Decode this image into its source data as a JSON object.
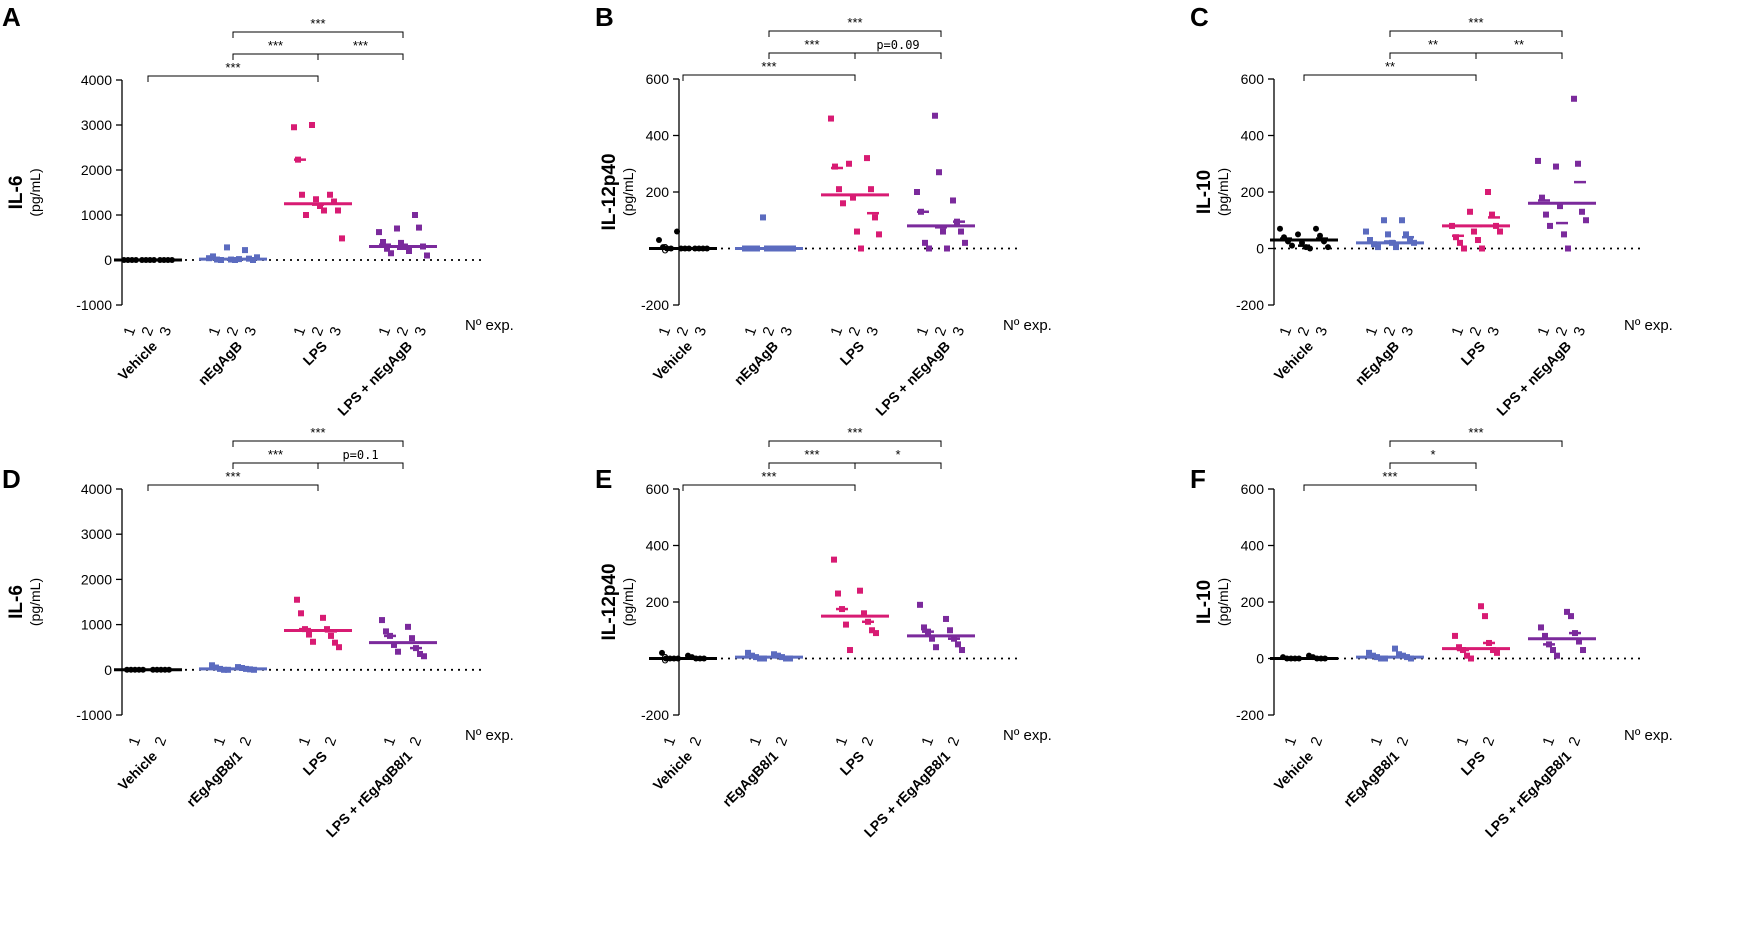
{
  "colors": {
    "Vehicle": "#000000",
    "agb": "#5b6bbf",
    "LPS": "#d81b73",
    "combo": "#7b2a9c"
  },
  "chart_data": [
    {
      "type": "scatter",
      "panel": "A",
      "ytitle": "IL-6",
      "yunit": "(pg/mL)",
      "ylim": [
        -1000,
        4000
      ],
      "yticks": [
        -1000,
        0,
        1000,
        2000,
        3000,
        4000
      ],
      "nexp_label": "Nº  exp.",
      "categories": [
        "Vehicle",
        "nEgAgB",
        "LPS",
        "LPS + nEgAgB"
      ],
      "exp_numbers": [
        "1",
        "2",
        "3"
      ],
      "series": [
        {
          "name": "Vehicle",
          "color_key": "Vehicle",
          "median": 0,
          "exp_medians": [
            0,
            0,
            0
          ],
          "values": [
            [
              0,
              0,
              0,
              0
            ],
            [
              0,
              0,
              0,
              0
            ],
            [
              0,
              0,
              0,
              0
            ]
          ]
        },
        {
          "name": "nEgAgB",
          "color_key": "agb",
          "median": 20,
          "exp_medians": [
            30,
            10,
            20
          ],
          "values": [
            [
              40,
              80,
              10,
              0
            ],
            [
              280,
              10,
              0,
              20
            ],
            [
              220,
              30,
              0,
              60
            ]
          ]
        },
        {
          "name": "LPS",
          "color_key": "LPS",
          "median": 1250,
          "exp_medians": [
            2230,
            1230,
            1250
          ],
          "values": [
            [
              2950,
              2230,
              1450,
              1000
            ],
            [
              3000,
              1350,
              1200,
              1100
            ],
            [
              1450,
              1300,
              1100,
              480
            ]
          ]
        },
        {
          "name": "LPS + nEgAgB",
          "color_key": "combo",
          "median": 300,
          "exp_medians": [
            340,
            250,
            300
          ],
          "values": [
            [
              620,
              400,
              250,
              150
            ],
            [
              700,
              380,
              300,
              200
            ],
            [
              1000,
              720,
              300,
              100
            ]
          ]
        }
      ],
      "comparisons": [
        {
          "from": 0,
          "to": 2,
          "label": "***"
        },
        {
          "from": 1,
          "to": 2,
          "label": "***"
        },
        {
          "from": 2,
          "to": 3,
          "label": "***"
        },
        {
          "from": 1,
          "to": 3,
          "label": "***"
        }
      ]
    },
    {
      "type": "scatter",
      "panel": "B",
      "ytitle": "IL-12p40",
      "yunit": "(pg/mL)",
      "ylim": [
        -200,
        600
      ],
      "yticks": [
        -200,
        0,
        200,
        400,
        600
      ],
      "nexp_label": "Nº  exp.",
      "categories": [
        "Vehicle",
        "nEgAgB",
        "LPS",
        "LPS + nEgAgB"
      ],
      "exp_numbers": [
        "1",
        "2",
        "3"
      ],
      "series": [
        {
          "name": "Vehicle",
          "color_key": "Vehicle",
          "median": 0,
          "exp_medians": [
            0,
            0,
            0
          ],
          "values": [
            [
              30,
              5,
              0,
              0
            ],
            [
              60,
              0,
              0,
              0
            ],
            [
              0,
              0,
              0,
              0
            ]
          ]
        },
        {
          "name": "nEgAgB",
          "color_key": "agb",
          "median": 0,
          "exp_medians": [
            0,
            0,
            0
          ],
          "values": [
            [
              0,
              0,
              0,
              0
            ],
            [
              110,
              0,
              0,
              0
            ],
            [
              0,
              0,
              0,
              0
            ]
          ]
        },
        {
          "name": "LPS",
          "color_key": "LPS",
          "median": 190,
          "exp_medians": [
            285,
            190,
            125
          ],
          "values": [
            [
              460,
              290,
              210,
              160
            ],
            [
              300,
              180,
              60,
              0
            ],
            [
              320,
              210,
              110,
              50
            ]
          ]
        },
        {
          "name": "LPS + nEgAgB",
          "color_key": "combo",
          "median": 80,
          "exp_medians": [
            130,
            75,
            95
          ],
          "values": [
            [
              200,
              130,
              20,
              0
            ],
            [
              470,
              270,
              60,
              0
            ],
            [
              170,
              95,
              60,
              20
            ]
          ]
        }
      ],
      "comparisons": [
        {
          "from": 0,
          "to": 2,
          "label": "***"
        },
        {
          "from": 1,
          "to": 2,
          "label": "***"
        },
        {
          "from": 2,
          "to": 3,
          "label": "p=0.09"
        },
        {
          "from": 1,
          "to": 3,
          "label": "***"
        }
      ]
    },
    {
      "type": "scatter",
      "panel": "C",
      "ytitle": "IL-10",
      "yunit": "(pg/mL)",
      "ylim": [
        -200,
        600
      ],
      "yticks": [
        -200,
        0,
        200,
        400,
        600
      ],
      "nexp_label": "Nº  exp.",
      "categories": [
        "Vehicle",
        "nEgAgB",
        "LPS",
        "LPS + nEgAgB"
      ],
      "exp_numbers": [
        "1",
        "2",
        "3"
      ],
      "series": [
        {
          "name": "Vehicle",
          "color_key": "Vehicle",
          "median": 30,
          "exp_medians": [
            35,
            10,
            35
          ],
          "values": [
            [
              70,
              40,
              25,
              10
            ],
            [
              50,
              20,
              5,
              0
            ],
            [
              70,
              45,
              25,
              5
            ]
          ]
        },
        {
          "name": "nEgAgB",
          "color_key": "agb",
          "median": 20,
          "exp_medians": [
            20,
            25,
            40
          ],
          "values": [
            [
              60,
              30,
              15,
              5
            ],
            [
              100,
              50,
              20,
              5
            ],
            [
              100,
              50,
              30,
              20
            ]
          ]
        },
        {
          "name": "LPS",
          "color_key": "LPS",
          "median": 80,
          "exp_medians": [
            45,
            80,
            110
          ],
          "values": [
            [
              80,
              40,
              20,
              0
            ],
            [
              130,
              60,
              30,
              0
            ],
            [
              200,
              120,
              80,
              60
            ]
          ]
        },
        {
          "name": "LPS + nEgAgB",
          "color_key": "combo",
          "median": 160,
          "exp_medians": [
            170,
            90,
            235
          ],
          "values": [
            [
              310,
              180,
              120,
              80
            ],
            [
              290,
              150,
              50,
              0
            ],
            [
              530,
              300,
              130,
              100
            ]
          ]
        }
      ],
      "comparisons": [
        {
          "from": 0,
          "to": 2,
          "label": "**"
        },
        {
          "from": 1,
          "to": 2,
          "label": "**"
        },
        {
          "from": 2,
          "to": 3,
          "label": "**"
        },
        {
          "from": 1,
          "to": 3,
          "label": "***"
        }
      ]
    },
    {
      "type": "scatter",
      "panel": "D",
      "ytitle": "IL-6",
      "yunit": "(pg/mL)",
      "ylim": [
        -1000,
        4000
      ],
      "yticks": [
        -1000,
        0,
        1000,
        2000,
        3000,
        4000
      ],
      "nexp_label": "Nº  exp.",
      "categories": [
        "Vehicle",
        "rEgAgB8/1",
        "LPS",
        "LPS + rEgAgB8/1"
      ],
      "exp_numbers": [
        "1",
        "2"
      ],
      "series": [
        {
          "name": "Vehicle",
          "color_key": "Vehicle",
          "median": 0,
          "exp_medians": [
            0,
            0
          ],
          "values": [
            [
              0,
              0,
              0,
              0,
              0
            ],
            [
              0,
              0,
              0,
              0,
              0
            ]
          ]
        },
        {
          "name": "rEgAgB8/1",
          "color_key": "agb",
          "median": 20,
          "exp_medians": [
            20,
            30
          ],
          "values": [
            [
              100,
              50,
              20,
              0,
              0
            ],
            [
              60,
              40,
              20,
              10,
              0
            ]
          ]
        },
        {
          "name": "LPS",
          "color_key": "LPS",
          "median": 870,
          "exp_medians": [
            900,
            850
          ],
          "values": [
            [
              1550,
              1250,
              900,
              780,
              620
            ],
            [
              1150,
              900,
              750,
              600,
              500
            ]
          ]
        },
        {
          "name": "LPS + rEgAgB8/1",
          "color_key": "combo",
          "median": 600,
          "exp_medians": [
            750,
            480
          ],
          "values": [
            [
              1100,
              850,
              750,
              550,
              400
            ],
            [
              950,
              700,
              480,
              350,
              300
            ]
          ]
        }
      ],
      "comparisons": [
        {
          "from": 0,
          "to": 2,
          "label": "***"
        },
        {
          "from": 1,
          "to": 2,
          "label": "***"
        },
        {
          "from": 2,
          "to": 3,
          "label": "p=0.1"
        },
        {
          "from": 1,
          "to": 3,
          "label": "***"
        }
      ]
    },
    {
      "type": "scatter",
      "panel": "E",
      "ytitle": "IL-12p40",
      "yunit": "(pg/mL)",
      "ylim": [
        -200,
        600
      ],
      "yticks": [
        -200,
        0,
        200,
        400,
        600
      ],
      "nexp_label": "Nº  exp.",
      "categories": [
        "Vehicle",
        "rEgAgB8/1",
        "LPS",
        "LPS + rEgAgB8/1"
      ],
      "exp_numbers": [
        "1",
        "2"
      ],
      "series": [
        {
          "name": "Vehicle",
          "color_key": "Vehicle",
          "median": 0,
          "exp_medians": [
            0,
            0
          ],
          "values": [
            [
              20,
              0,
              0,
              0,
              0
            ],
            [
              10,
              5,
              0,
              0,
              0
            ]
          ]
        },
        {
          "name": "rEgAgB8/1",
          "color_key": "agb",
          "median": 5,
          "exp_medians": [
            5,
            5
          ],
          "values": [
            [
              20,
              10,
              5,
              0,
              0
            ],
            [
              15,
              10,
              5,
              0,
              0
            ]
          ]
        },
        {
          "name": "LPS",
          "color_key": "LPS",
          "median": 150,
          "exp_medians": [
            175,
            130
          ],
          "values": [
            [
              350,
              230,
              175,
              120,
              30
            ],
            [
              240,
              160,
              130,
              100,
              90
            ]
          ]
        },
        {
          "name": "LPS + rEgAgB8/1",
          "color_key": "combo",
          "median": 80,
          "exp_medians": [
            95,
            70
          ],
          "values": [
            [
              190,
              110,
              95,
              70,
              40
            ],
            [
              140,
              100,
              70,
              50,
              30
            ]
          ]
        }
      ],
      "comparisons": [
        {
          "from": 0,
          "to": 2,
          "label": "***"
        },
        {
          "from": 1,
          "to": 2,
          "label": "***"
        },
        {
          "from": 2,
          "to": 3,
          "label": "*"
        },
        {
          "from": 1,
          "to": 3,
          "label": "***"
        }
      ]
    },
    {
      "type": "scatter",
      "panel": "F",
      "ytitle": "IL-10",
      "yunit": "(pg/mL)",
      "ylim": [
        -200,
        600
      ],
      "yticks": [
        -200,
        0,
        200,
        400,
        600
      ],
      "nexp_label": "Nº  exp.",
      "categories": [
        "Vehicle",
        "rEgAgB8/1",
        "LPS",
        "LPS + rEgAgB8/1"
      ],
      "exp_numbers": [
        "1",
        "2"
      ],
      "series": [
        {
          "name": "Vehicle",
          "color_key": "Vehicle",
          "median": 0,
          "exp_medians": [
            0,
            0
          ],
          "values": [
            [
              5,
              0,
              0,
              0,
              0
            ],
            [
              10,
              5,
              0,
              0,
              0
            ]
          ]
        },
        {
          "name": "rEgAgB8/1",
          "color_key": "agb",
          "median": 5,
          "exp_medians": [
            5,
            10
          ],
          "values": [
            [
              20,
              10,
              5,
              0,
              0
            ],
            [
              35,
              15,
              10,
              5,
              0
            ]
          ]
        },
        {
          "name": "LPS",
          "color_key": "LPS",
          "median": 35,
          "exp_medians": [
            30,
            55
          ],
          "values": [
            [
              80,
              40,
              30,
              10,
              0
            ],
            [
              185,
              150,
              55,
              30,
              20
            ]
          ]
        },
        {
          "name": "LPS + rEgAgB8/1",
          "color_key": "combo",
          "median": 70,
          "exp_medians": [
            50,
            90
          ],
          "values": [
            [
              110,
              80,
              50,
              30,
              10
            ],
            [
              165,
              150,
              90,
              60,
              30
            ]
          ]
        }
      ],
      "comparisons": [
        {
          "from": 0,
          "to": 2,
          "label": "***"
        },
        {
          "from": 1,
          "to": 2,
          "label": "*"
        },
        {
          "from": 1,
          "to": 3,
          "label": "***"
        }
      ]
    }
  ]
}
